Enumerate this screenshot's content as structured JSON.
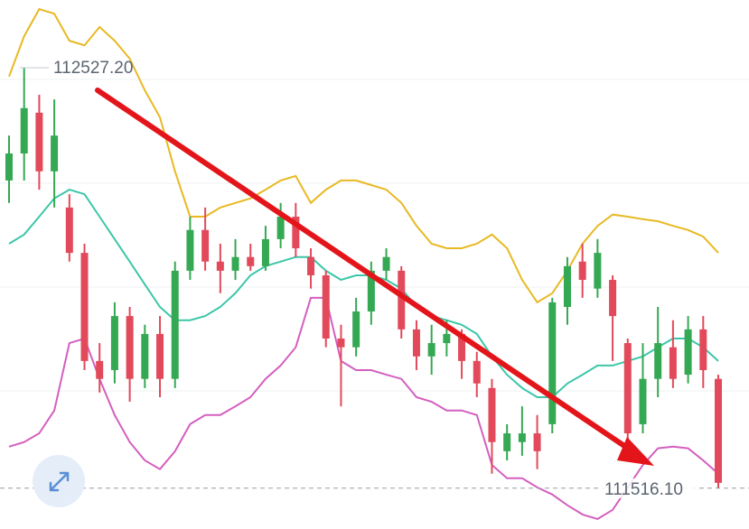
{
  "chart_data": {
    "type": "candlestick",
    "ylim": [
      111418,
      112690
    ],
    "up_color": "#35a853",
    "down_color": "#e24a5b",
    "open": [
      112256,
      112321,
      112419,
      112278,
      112191,
      112082,
      111822,
      111800,
      111930,
      111779,
      111887,
      111779,
      112039,
      112137,
      112061,
      112039,
      112072,
      112050,
      112115,
      112169,
      112072,
      112028,
      111876,
      111855,
      111941,
      112039,
      112039,
      111898,
      111833,
      111865,
      111887,
      111822,
      111757,
      111605,
      111627,
      111648,
      111670,
      111952,
      112061,
      111996,
      112017,
      111865,
      111670,
      111779,
      111855,
      111789,
      111898,
      111779
    ],
    "high": [
      112364,
      112527,
      112462,
      112451,
      112223,
      112104,
      111865,
      111963,
      111952,
      111909,
      111930,
      112061,
      112169,
      112191,
      112104,
      112115,
      112104,
      112147,
      112202,
      112202,
      112093,
      112039,
      111909,
      111974,
      112061,
      112093,
      112050,
      111920,
      111909,
      111920,
      111898,
      111844,
      111779,
      111670,
      111713,
      111692,
      111974,
      112072,
      112104,
      112115,
      112028,
      111876,
      111865,
      111952,
      111920,
      111930,
      111930,
      111789
    ],
    "low": [
      112202,
      112256,
      112234,
      112191,
      112061,
      111800,
      111746,
      111768,
      111724,
      111757,
      111735,
      111757,
      112017,
      112039,
      111985,
      112017,
      112039,
      112039,
      112093,
      112072,
      111996,
      111855,
      111713,
      111833,
      111909,
      112017,
      111876,
      111800,
      111789,
      111833,
      111779,
      111735,
      111551,
      111583,
      111594,
      111562,
      111648,
      111909,
      111974,
      111974,
      111822,
      111605,
      111648,
      111735,
      111757,
      111768,
      111757,
      111516
    ],
    "close": [
      112321,
      112430,
      112278,
      112364,
      112082,
      111822,
      111779,
      111930,
      111779,
      111887,
      111779,
      112039,
      112137,
      112061,
      112039,
      112072,
      112050,
      112115,
      112169,
      112093,
      112028,
      111876,
      111855,
      111941,
      112039,
      112072,
      111898,
      111833,
      111865,
      111887,
      111822,
      111768,
      111627,
      111648,
      111648,
      111605,
      111963,
      112050,
      112017,
      112082,
      111930,
      111648,
      111779,
      111865,
      111779,
      111898,
      111800,
      111529
    ],
    "upper": {
      "color": "#e8b923",
      "values": [
        112506,
        112603,
        112668,
        112657,
        112592,
        112581,
        112625,
        112592,
        112549,
        112473,
        112408,
        112278,
        112169,
        112169,
        112191,
        112202,
        112213,
        112234,
        112256,
        112267,
        112202,
        112234,
        112256,
        112256,
        112245,
        112234,
        112202,
        112147,
        112104,
        112093,
        112093,
        112104,
        112126,
        112093,
        112017,
        111963,
        111985,
        112039,
        112104,
        112147,
        112174,
        112169,
        112163,
        112158,
        112147,
        112137,
        112121,
        112082
      ]
    },
    "middle": {
      "color": "#3cc6a8",
      "values": [
        112104,
        112126,
        112169,
        112213,
        112234,
        112223,
        112169,
        112115,
        112061,
        112006,
        111952,
        111920,
        111920,
        111930,
        111952,
        111985,
        112028,
        112050,
        112061,
        112072,
        112072,
        112039,
        112017,
        112028,
        112028,
        112017,
        111996,
        111952,
        111930,
        111920,
        111909,
        111887,
        111833,
        111789,
        111757,
        111735,
        111735,
        111768,
        111789,
        111811,
        111811,
        111822,
        111833,
        111855,
        111876,
        111876,
        111855,
        111822
      ]
    },
    "lower": {
      "color": "#d45fbf",
      "values": [
        111616,
        111627,
        111648,
        111703,
        111865,
        111876,
        111779,
        111692,
        111627,
        111583,
        111562,
        111605,
        111670,
        111692,
        111692,
        111713,
        111735,
        111779,
        111811,
        111855,
        111974,
        111974,
        111822,
        111800,
        111800,
        111789,
        111779,
        111735,
        111724,
        111703,
        111703,
        111692,
        111572,
        111540,
        111540,
        111518,
        111501,
        111475,
        111453,
        111442,
        111464,
        111518,
        111572,
        111612,
        111616,
        111612,
        111583,
        111551
      ]
    },
    "high_marker": {
      "value": 112527.2,
      "label": "112527.20"
    },
    "low_marker": {
      "value": 111516.1,
      "label": "111516.10"
    }
  }
}
